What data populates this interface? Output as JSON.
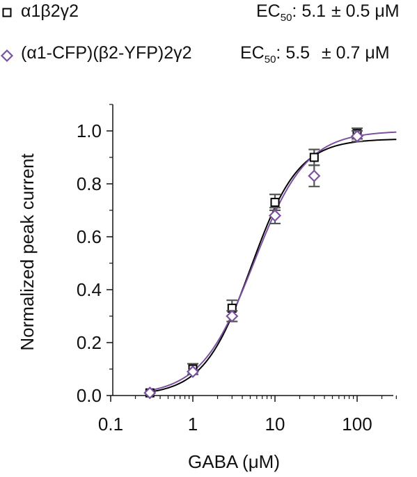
{
  "legend": [
    {
      "marker_label": "α1β2γ2",
      "ec50_prefix": "EC",
      "ec50_sub": "50",
      "ec50_value": ": 5.1",
      "ec50_error": "± 0.5 μM"
    },
    {
      "marker_label": "(α1-CFP)(β2-YFP)2γ2",
      "ec50_prefix": "EC",
      "ec50_sub": "50",
      "ec50_value": ": 5.5",
      "ec50_error": "± 0.7 μM"
    }
  ],
  "chart_data": {
    "type": "scatter",
    "title": "",
    "xlabel": "GABA (μM)",
    "ylabel": "Normalized peak current",
    "x_scale": "log",
    "xlim": [
      0.1,
      300
    ],
    "ylim": [
      0,
      1.1
    ],
    "x_ticks": [
      0.1,
      1,
      10,
      100
    ],
    "x_tick_labels": [
      "0.1",
      "1",
      "10",
      "100"
    ],
    "y_ticks": [
      0,
      0.2,
      0.4,
      0.6,
      0.8,
      1.0
    ],
    "y_tick_labels": [
      "0.0",
      "0.2",
      "0.4",
      "0.6",
      "0.8",
      "1.0"
    ],
    "grid": false,
    "legend_position": "top",
    "series": [
      {
        "name": "α1β2γ2",
        "marker": "square",
        "color": "#000000",
        "x": [
          0.3,
          1,
          3,
          10,
          30,
          100
        ],
        "y": [
          0.01,
          0.1,
          0.33,
          0.73,
          0.9,
          0.99
        ],
        "error": [
          0.01,
          0.02,
          0.03,
          0.03,
          0.03,
          0.02
        ],
        "fit": {
          "ec50": 5.1,
          "hill": 1.5,
          "max": 0.97
        }
      },
      {
        "name": "(α1-CFP)(β2-YFP)2γ2",
        "marker": "diamond",
        "color": "#7b52a0",
        "x": [
          0.3,
          1,
          3,
          10,
          30,
          100
        ],
        "y": [
          0.01,
          0.09,
          0.3,
          0.68,
          0.83,
          0.98
        ],
        "error": [
          0.01,
          0.01,
          0.02,
          0.03,
          0.04,
          0.02
        ],
        "fit": {
          "ec50": 5.5,
          "hill": 1.35,
          "max": 1.0
        }
      }
    ]
  }
}
